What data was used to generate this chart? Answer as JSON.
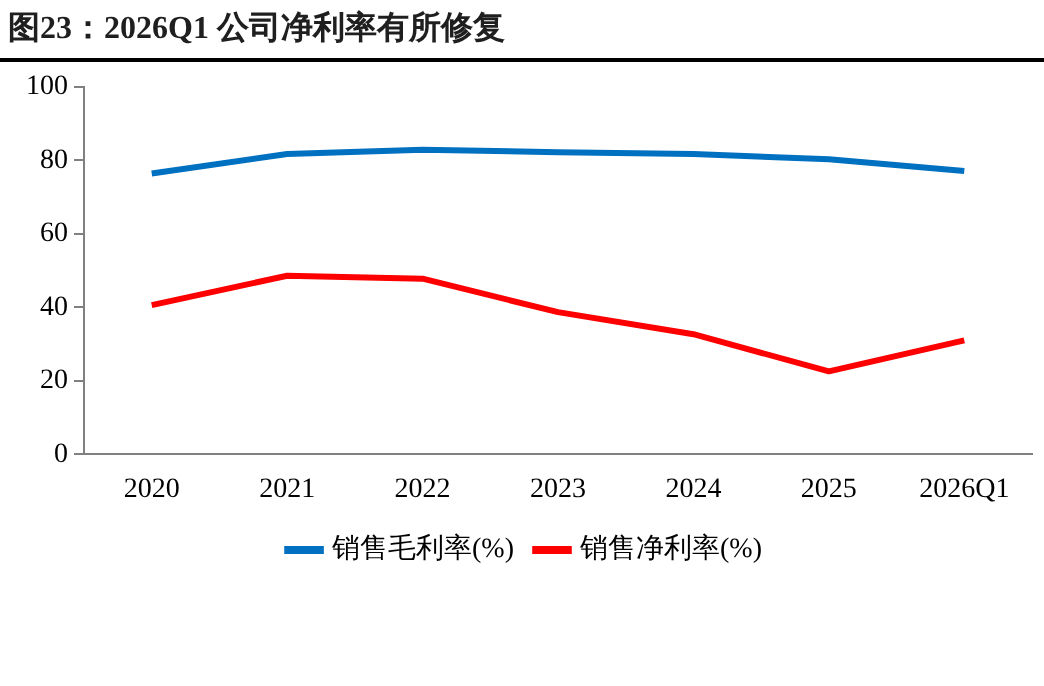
{
  "chart_data": {
    "type": "line",
    "title": "图23：2026Q1 公司净利率有所修复",
    "categories": [
      "2020",
      "2021",
      "2022",
      "2023",
      "2024",
      "2025",
      "2026Q1"
    ],
    "series": [
      {
        "name": "销售毛利率(%)",
        "color": "#0070c0",
        "values": [
          76.4,
          81.7,
          82.9,
          82.2,
          81.7,
          80.3,
          77.1
        ]
      },
      {
        "name": "销售净利率(%)",
        "color": "#ff0000",
        "values": [
          40.6,
          48.6,
          47.8,
          38.7,
          32.7,
          22.6,
          31.0
        ]
      }
    ],
    "ylim": [
      0,
      100
    ],
    "yticks": [
      0,
      20,
      40,
      60,
      80,
      100
    ],
    "grid": false,
    "legend": "bottom",
    "marker": "none",
    "line_style": "solid"
  }
}
